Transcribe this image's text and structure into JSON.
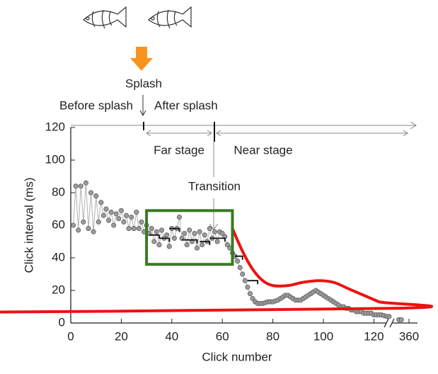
{
  "chart_data": {
    "type": "scatter",
    "xlabel": "Click number",
    "ylabel": "Click interval (ms)",
    "xlim": [
      0,
      362
    ],
    "x_break": [
      128,
      355
    ],
    "ylim": [
      0,
      120
    ],
    "xticks": [
      0,
      20,
      40,
      60,
      80,
      100,
      120,
      360
    ],
    "yticks": [
      0,
      20,
      40,
      60,
      80,
      100,
      120
    ],
    "annotations": {
      "splash": "Splash",
      "before": "Before splash",
      "after": "After splash",
      "far": "Far stage",
      "near": "Near stage",
      "transition": "Transition"
    },
    "series": [
      {
        "color": "#9a9a9a",
        "x": [
          1,
          2,
          3,
          4,
          5,
          6,
          7,
          8,
          9,
          10,
          11,
          12,
          13,
          14,
          15,
          16,
          17,
          18,
          19,
          20,
          21,
          22,
          23,
          24,
          25,
          26,
          27,
          28,
          29,
          30,
          31,
          32,
          33,
          34,
          35,
          36,
          37,
          38,
          39,
          40,
          41,
          42,
          43,
          44,
          45,
          46,
          47,
          48,
          49,
          50,
          51,
          52,
          53,
          54,
          55,
          56,
          57,
          58,
          59,
          60,
          61,
          62,
          63,
          64,
          65,
          66,
          67,
          68,
          69,
          70,
          71,
          72,
          73,
          74,
          75,
          76,
          77,
          78,
          79,
          80,
          81,
          82,
          83,
          84,
          85,
          86,
          87,
          88,
          89,
          90,
          91,
          92,
          93,
          94,
          95,
          96,
          97,
          98,
          99,
          100,
          101,
          102,
          103,
          104,
          105,
          106,
          107,
          108,
          109,
          110,
          111,
          112,
          113,
          114,
          115,
          116,
          117,
          118,
          119,
          120,
          121,
          122,
          123,
          124,
          125,
          126,
          356,
          357
        ],
        "values": [
          60,
          84,
          57,
          84,
          62,
          86,
          58,
          80,
          56,
          78,
          62,
          74,
          66,
          70,
          63,
          68,
          60,
          67,
          64,
          69,
          62,
          66,
          58,
          65,
          58,
          68,
          58,
          62,
          56,
          60,
          55,
          58,
          50,
          56,
          48,
          57,
          52,
          54,
          47,
          58,
          52,
          58,
          65,
          52,
          55,
          48,
          57,
          50,
          55,
          46,
          56,
          48,
          54,
          50,
          58,
          52,
          56,
          50,
          56,
          55,
          53,
          48,
          46,
          43,
          41,
          38,
          34,
          30,
          26,
          22,
          18,
          15,
          13,
          12,
          12,
          12,
          12.5,
          13,
          13,
          13,
          13.5,
          14,
          15,
          16,
          17,
          17,
          16,
          15,
          14,
          14,
          14,
          15,
          16,
          17,
          18,
          19,
          20,
          19,
          18,
          17,
          16,
          15,
          14,
          13,
          12,
          11,
          10,
          10,
          9,
          9,
          8,
          8,
          7,
          7,
          7,
          6,
          6,
          6,
          6,
          5,
          5,
          5,
          5,
          4.5,
          4,
          4,
          2,
          2
        ]
      }
    ],
    "steps": {
      "color": "#111",
      "x": [
        [
          31,
          35
        ],
        [
          35,
          39
        ],
        [
          39,
          43
        ],
        [
          44,
          50
        ],
        [
          51,
          55
        ],
        [
          55,
          61
        ],
        [
          65,
          68
        ],
        [
          70,
          74
        ]
      ],
      "values": [
        54,
        52,
        58,
        51,
        50,
        52,
        41,
        26
      ]
    },
    "trend": {
      "color": "#ee1111",
      "x": [
        64,
        68,
        72,
        76,
        80,
        86,
        92,
        98,
        104,
        110,
        116,
        122,
        128,
        133
      ],
      "values": [
        58,
        44,
        33,
        26,
        23,
        23,
        25,
        26,
        25,
        21,
        17,
        13,
        9,
        6
      ]
    },
    "highlight": {
      "color": "#3a7a22",
      "xlim": [
        30,
        64
      ],
      "ylim": [
        36,
        69
      ]
    }
  }
}
